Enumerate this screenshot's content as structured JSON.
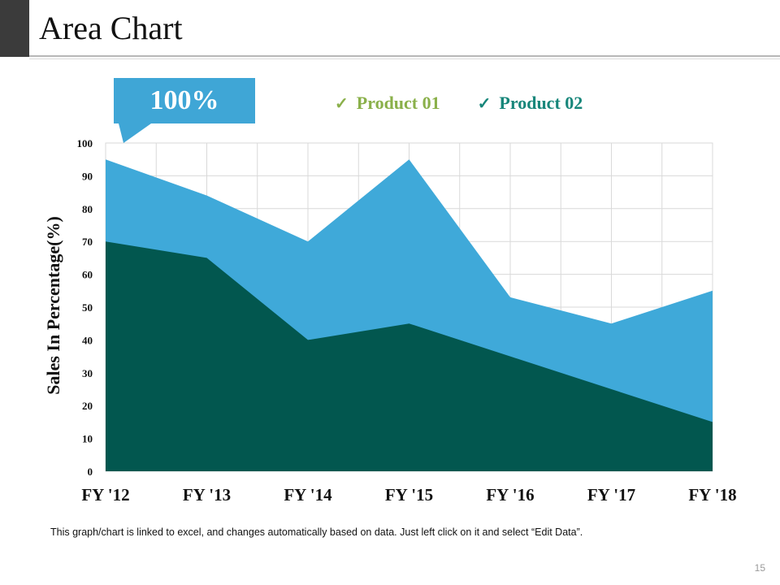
{
  "slide": {
    "title": "Area Chart",
    "callout_value": "100%",
    "footnote": "This graph/chart is linked to excel, and changes automatically  based on data. Just left click on it and select “Edit Data”.",
    "page_number": "15"
  },
  "colors": {
    "product_01": "#02574f",
    "product_02": "#3fa9d9",
    "legend_product_01": "#8ab04a",
    "legend_product_02": "#17867a",
    "callout": "#3fa6d6"
  },
  "legend": [
    {
      "check_icon": "✓",
      "label": "Product 01"
    },
    {
      "check_icon": "✓",
      "label": "Product 02"
    }
  ],
  "chart_data": {
    "type": "area",
    "title": "",
    "xlabel": "",
    "ylabel": "Sales In Percentage(%)",
    "categories": [
      "FY '12",
      "FY '13",
      "FY '14",
      "FY '15",
      "FY '16",
      "FY '17",
      "FY '18"
    ],
    "ylim": [
      0,
      100
    ],
    "yticks": [
      0,
      10,
      20,
      30,
      40,
      50,
      60,
      70,
      80,
      90,
      100
    ],
    "grid": true,
    "legend_position": "top",
    "stacked": false,
    "series": [
      {
        "name": "Product 01",
        "values": [
          70,
          65,
          40,
          45,
          35,
          25,
          15
        ]
      },
      {
        "name": "Product 02",
        "values": [
          95,
          84,
          70,
          95,
          53,
          45,
          55
        ]
      }
    ]
  }
}
